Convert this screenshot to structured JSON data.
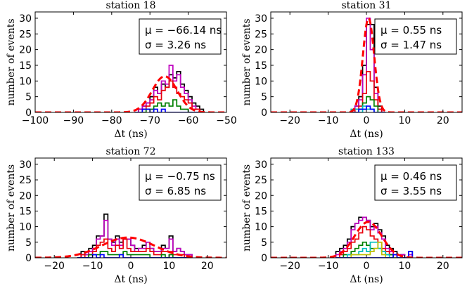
{
  "colors": {
    "all": "#000000",
    "magenta": "#bf00bf",
    "red": "#e8000b",
    "green": "#008000",
    "cyan": "#00bfbf",
    "blue": "#0000ff",
    "olive": "#bfbf00",
    "fit": "#ff0000"
  },
  "chart_data": [
    {
      "type": "histogram",
      "title": "station 18",
      "xlabel": "Δt (ns)",
      "ylabel": "number of events",
      "xlim": [
        -100,
        -50
      ],
      "ylim": [
        0,
        32
      ],
      "xticks": [
        -100,
        -90,
        -80,
        -70,
        -60,
        -50
      ],
      "xtick_labels": [
        "−100",
        "−90",
        "−80",
        "−70",
        "−60",
        "−50"
      ],
      "yticks": [
        0,
        5,
        10,
        15,
        20,
        25,
        30
      ],
      "bin_start": -74,
      "bin_width": 1,
      "fit": {
        "mu": -66.14,
        "sigma": 3.26,
        "amplitude": 11.5,
        "mu_text": "μ = −66.14 ns",
        "sigma_text": "σ = 3.26 ns"
      },
      "series": [
        {
          "color": "all",
          "values": [
            0,
            1,
            2,
            3,
            5,
            8,
            6,
            9,
            8,
            12,
            11,
            13,
            9,
            7,
            5,
            3,
            2,
            1
          ]
        },
        {
          "color": "magenta",
          "values": [
            0,
            1,
            2,
            3,
            4,
            7,
            6,
            10,
            9,
            15,
            10,
            12,
            8,
            6,
            4,
            2,
            1,
            0
          ]
        },
        {
          "color": "red",
          "values": [
            0,
            0,
            1,
            2,
            3,
            5,
            4,
            7,
            8,
            10,
            8,
            6,
            5,
            4,
            3,
            1,
            1,
            0
          ]
        },
        {
          "color": "green",
          "values": [
            0,
            0,
            0,
            1,
            1,
            2,
            3,
            2,
            3,
            2,
            4,
            2,
            1,
            1,
            0,
            0,
            0,
            0
          ]
        },
        {
          "color": "blue",
          "values": [
            0,
            0,
            1,
            1,
            0,
            1,
            0,
            1,
            0,
            0,
            0,
            0,
            0,
            0,
            0,
            0,
            0,
            0
          ]
        }
      ]
    },
    {
      "type": "histogram",
      "title": "station 31",
      "xlabel": "Δt (ns)",
      "ylabel": "number of events",
      "xlim": [
        -25,
        25
      ],
      "ylim": [
        0,
        32
      ],
      "xticks": [
        -20,
        -10,
        0,
        10,
        20
      ],
      "xtick_labels": [
        "−20",
        "−10",
        "0",
        "10",
        "20"
      ],
      "yticks": [
        0,
        5,
        10,
        15,
        20,
        25,
        30
      ],
      "bin_start": -4,
      "bin_width": 1,
      "fit": {
        "mu": 0.55,
        "sigma": 1.47,
        "amplitude": 30,
        "mu_text": "μ = 0.55 ns",
        "sigma_text": "σ = 1.47 ns"
      },
      "series": [
        {
          "color": "all",
          "values": [
            0,
            2,
            5,
            15,
            28,
            28,
            8,
            2,
            0
          ]
        },
        {
          "color": "magenta",
          "values": [
            0,
            2,
            4,
            12,
            30,
            20,
            6,
            1,
            0
          ]
        },
        {
          "color": "red",
          "values": [
            0,
            1,
            2,
            6,
            13,
            10,
            4,
            1,
            0
          ]
        },
        {
          "color": "green",
          "values": [
            0,
            0,
            1,
            3,
            5,
            4,
            2,
            0,
            0
          ]
        },
        {
          "color": "cyan",
          "values": [
            1,
            1,
            0,
            2,
            1,
            1,
            0,
            0,
            0
          ]
        },
        {
          "color": "blue",
          "values": [
            0,
            0,
            1,
            1,
            2,
            1,
            0,
            0,
            0
          ]
        }
      ]
    },
    {
      "type": "histogram",
      "title": "station 72",
      "xlabel": "Δt (ns)",
      "ylabel": "number of events",
      "xlim": [
        -25,
        25
      ],
      "ylim": [
        0,
        32
      ],
      "xticks": [
        -20,
        -10,
        0,
        10,
        20
      ],
      "xtick_labels": [
        "−20",
        "−10",
        "0",
        "10",
        "20"
      ],
      "yticks": [
        0,
        5,
        10,
        15,
        20,
        25,
        30
      ],
      "bin_start": -14,
      "bin_width": 1,
      "fit": {
        "mu": -0.75,
        "sigma": 6.85,
        "amplitude": 6.5,
        "mu_text": "μ = −0.75 ns",
        "sigma_text": "σ = 6.85 ns"
      },
      "series": [
        {
          "color": "all",
          "values": [
            0,
            2,
            1,
            3,
            4,
            7,
            7,
            14,
            6,
            5,
            7,
            5,
            6,
            6,
            4,
            3,
            3,
            4,
            5,
            3,
            2,
            2,
            4,
            3,
            7,
            2,
            3,
            2,
            1,
            1
          ]
        },
        {
          "color": "magenta",
          "values": [
            0,
            1,
            1,
            2,
            3,
            6,
            7,
            12,
            6,
            4,
            6,
            4,
            6,
            6,
            4,
            2,
            3,
            3,
            5,
            3,
            2,
            2,
            3,
            3,
            6,
            2,
            3,
            2,
            1,
            1
          ]
        },
        {
          "color": "red",
          "values": [
            0,
            1,
            0,
            1,
            2,
            4,
            5,
            6,
            3,
            2,
            4,
            3,
            6,
            3,
            2,
            2,
            2,
            2,
            3,
            2,
            1,
            1,
            2,
            2,
            2,
            1,
            1,
            1,
            0,
            0
          ]
        },
        {
          "color": "green",
          "values": [
            0,
            0,
            0,
            1,
            1,
            1,
            2,
            2,
            1,
            1,
            1,
            1,
            2,
            1,
            1,
            1,
            1,
            1,
            1,
            0,
            0,
            0,
            1,
            0,
            1,
            0,
            0,
            0,
            0,
            0
          ]
        },
        {
          "color": "blue",
          "values": [
            0,
            0,
            0,
            0,
            1,
            0,
            1,
            0,
            0,
            0,
            0,
            1,
            0,
            0,
            0,
            0,
            0,
            0,
            0,
            0,
            0,
            0,
            0,
            0,
            0,
            0,
            0,
            0,
            0,
            0
          ]
        }
      ]
    },
    {
      "type": "histogram",
      "title": "station 133",
      "xlabel": "Δt (ns)",
      "ylabel": "number of events",
      "xlim": [
        -25,
        25
      ],
      "ylim": [
        0,
        32
      ],
      "xticks": [
        -20,
        -10,
        0,
        10,
        20
      ],
      "xtick_labels": [
        "−20",
        "−10",
        "0",
        "10",
        "20"
      ],
      "yticks": [
        0,
        5,
        10,
        15,
        20,
        25,
        30
      ],
      "bin_start": -8,
      "bin_width": 1,
      "fit": {
        "mu": 0.46,
        "sigma": 3.55,
        "amplitude": 11.5,
        "mu_text": "μ = 0.46 ns",
        "sigma_text": "σ = 3.55 ns"
      },
      "series": [
        {
          "color": "all",
          "values": [
            2,
            3,
            4,
            6,
            10,
            11,
            13,
            13,
            12,
            10,
            11,
            9,
            7,
            4,
            3,
            2,
            0,
            1,
            0,
            2
          ]
        },
        {
          "color": "magenta",
          "values": [
            1,
            2,
            3,
            5,
            9,
            11,
            12,
            13,
            12,
            9,
            10,
            8,
            6,
            3,
            2,
            1,
            0,
            1,
            0,
            1
          ]
        },
        {
          "color": "red",
          "values": [
            0,
            1,
            2,
            3,
            5,
            6,
            8,
            10,
            9,
            7,
            6,
            5,
            3,
            2,
            1,
            1,
            0,
            0,
            0,
            0
          ]
        },
        {
          "color": "green",
          "values": [
            0,
            0,
            1,
            1,
            2,
            3,
            4,
            5,
            4,
            3,
            3,
            3,
            2,
            1,
            1,
            0,
            0,
            0,
            0,
            0
          ]
        },
        {
          "color": "cyan",
          "values": [
            0,
            0,
            0,
            1,
            1,
            1,
            2,
            3,
            2,
            5,
            5,
            3,
            2,
            1,
            0,
            0,
            0,
            0,
            0,
            0
          ]
        },
        {
          "color": "olive",
          "values": [
            0,
            0,
            0,
            0,
            1,
            1,
            1,
            1,
            1,
            2,
            3,
            5,
            1,
            0,
            0,
            0,
            0,
            0,
            0,
            0
          ]
        },
        {
          "color": "blue",
          "values": [
            0,
            0,
            0,
            0,
            0,
            0,
            0,
            0,
            0,
            0,
            0,
            0,
            0,
            0,
            0,
            1,
            0,
            0,
            0,
            2
          ]
        }
      ]
    }
  ]
}
